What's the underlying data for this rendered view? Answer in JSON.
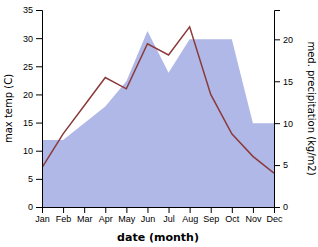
{
  "chart_data": {
    "type": "line",
    "categories": [
      "Jan",
      "Feb",
      "Mar",
      "Apr",
      "May",
      "Jun",
      "Jul",
      "Aug",
      "Sep",
      "Oct",
      "Nov",
      "Dec"
    ],
    "xlabel": "date (month)",
    "ylabel": "max temp (C)",
    "y2label": "med. precipitation (kg/m2)",
    "series": [
      {
        "type": "area",
        "axis": "y2",
        "color": "#b0b8e8",
        "values": [
          8,
          8,
          10,
          12,
          15,
          21,
          16,
          20,
          20,
          20,
          10,
          10
        ]
      },
      {
        "type": "line",
        "color": "#8B3A3A",
        "values": [
          7,
          13,
          18,
          23,
          21,
          29,
          27,
          32,
          20,
          13,
          9,
          6
        ]
      }
    ],
    "ylim": [
      0,
      35
    ],
    "yticks": [
      0,
      5,
      10,
      15,
      20,
      25,
      30,
      35
    ],
    "y2lim": [
      0,
      23.5
    ],
    "y2ticks": [
      0,
      5,
      10,
      15,
      20
    ]
  }
}
